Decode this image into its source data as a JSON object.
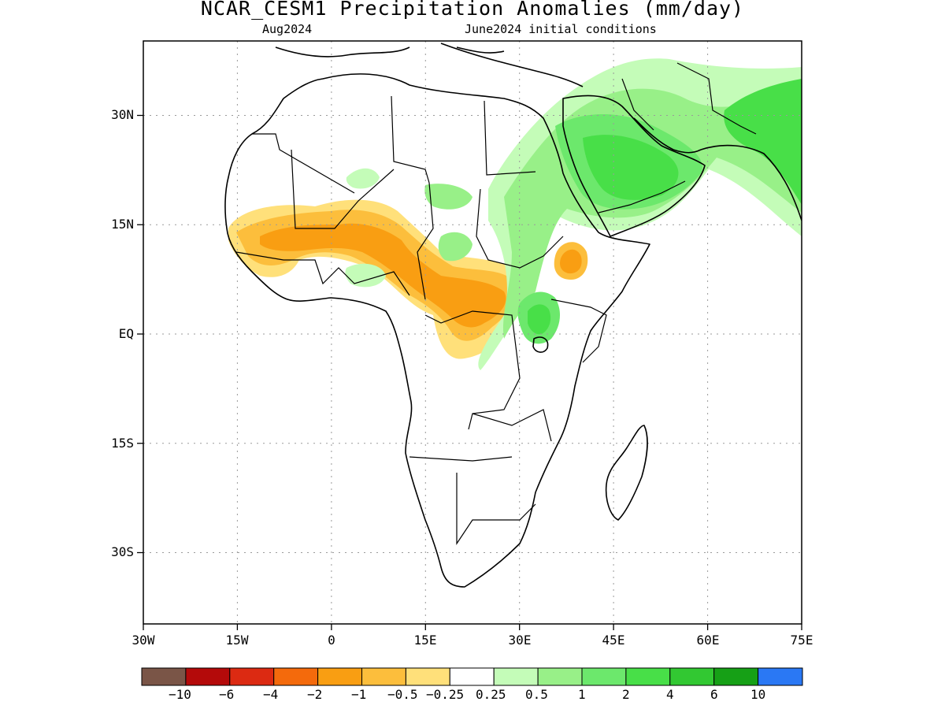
{
  "title": "NCAR_CESM1 Precipitation Anomalies (mm/day)",
  "subtitle_left": "Aug2024",
  "subtitle_right": "June2024 initial conditions",
  "map": {
    "projection": "lat-lon",
    "lon_range": [
      -30,
      75
    ],
    "lat_range": [
      -40,
      40
    ],
    "grid": "dotted",
    "y_ticks": [
      {
        "lat": 30,
        "label": "30N"
      },
      {
        "lat": 15,
        "label": "15N"
      },
      {
        "lat": 0,
        "label": "EQ"
      },
      {
        "lat": -15,
        "label": "15S"
      },
      {
        "lat": -30,
        "label": "30S"
      }
    ],
    "x_ticks": [
      {
        "lon": -30,
        "label": "30W"
      },
      {
        "lon": -15,
        "label": "15W"
      },
      {
        "lon": 0,
        "label": "0"
      },
      {
        "lon": 15,
        "label": "15E"
      },
      {
        "lon": 30,
        "label": "30E"
      },
      {
        "lon": 45,
        "label": "45E"
      },
      {
        "lon": 60,
        "label": "60E"
      },
      {
        "lon": 75,
        "label": "75E"
      }
    ]
  },
  "colorbar": {
    "colors": [
      "#7a5547",
      "#b40a0a",
      "#dc2a12",
      "#f46a0c",
      "#f99e12",
      "#fcbe3c",
      "#ffe07a",
      "#ffffff",
      "#c4fcb8",
      "#98f088",
      "#6ce86c",
      "#48df48",
      "#32c832",
      "#16a016",
      "#2a78f4"
    ],
    "labels": [
      "−10",
      "−6",
      "−4",
      "−2",
      "−1",
      "−0.5",
      "−0.25",
      "0.25",
      "0.5",
      "1",
      "2",
      "4",
      "6",
      "10"
    ]
  }
}
